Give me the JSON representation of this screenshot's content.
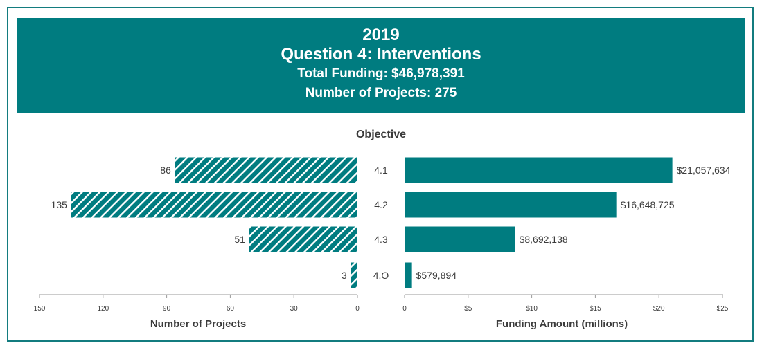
{
  "header": {
    "year": "2019",
    "title": "Question 4: Interventions",
    "total_funding": "Total Funding: $46,978,391",
    "project_count": "Number of Projects: 275"
  },
  "colors": {
    "teal": "#007c80",
    "text": "#3b3b3b",
    "axis": "#9a9a9a"
  },
  "chart_data": {
    "type": "bar",
    "title": "Objective",
    "categories": [
      "4.1",
      "4.2",
      "4.3",
      "4.O"
    ],
    "series": [
      {
        "name": "Number of Projects",
        "values": [
          86,
          135,
          51,
          3
        ],
        "labels": [
          "86",
          "135",
          "51",
          "3"
        ],
        "pattern": "hatched",
        "orientation": "horizontal, extends left"
      },
      {
        "name": "Funding Amount (millions)",
        "values": [
          21.057634,
          16.648725,
          8.692138,
          0.579894
        ],
        "labels": [
          "$21,057,634",
          "$16,648,725",
          "$8,692,138",
          "$579,894"
        ],
        "pattern": "solid",
        "orientation": "horizontal, extends right"
      }
    ],
    "left_axis": {
      "xlabel": "Number of Projects",
      "xlim": [
        150,
        0
      ],
      "ticks": [
        150,
        120,
        90,
        60,
        30,
        0
      ],
      "tick_labels": [
        "150",
        "120",
        "90",
        "60",
        "30",
        "0"
      ]
    },
    "right_axis": {
      "xlabel": "Funding Amount (millions)",
      "xlim": [
        0,
        25
      ],
      "ticks": [
        0,
        5,
        10,
        15,
        20,
        25
      ],
      "tick_labels": [
        "0",
        "$5",
        "$10",
        "$15",
        "$20",
        "$25"
      ]
    },
    "grid": false,
    "legend": "none"
  }
}
